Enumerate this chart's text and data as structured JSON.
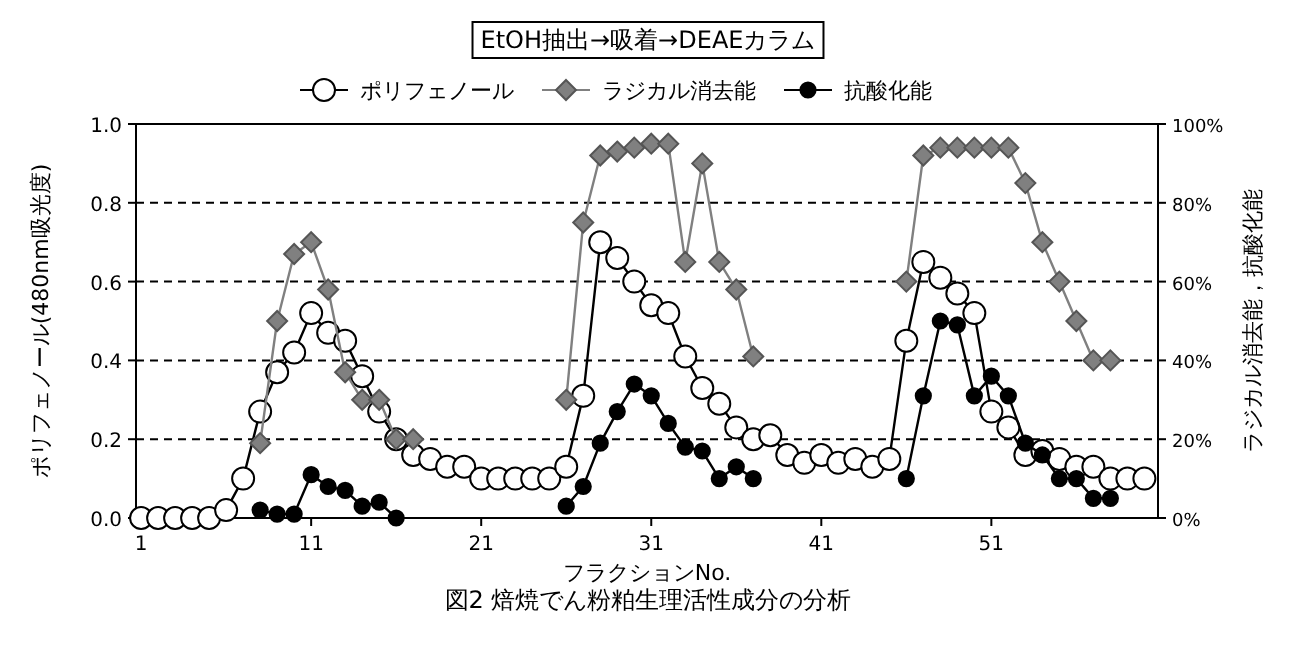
{
  "chart_data": {
    "type": "line",
    "title": "EtOH抽出→吸着→DEAEカラム",
    "xlabel": "フラクションNo.",
    "ylabel": "ポリフェノール(480nm吸光度)",
    "y2label": "ラジカル消去能，抗酸化能",
    "x": [
      1,
      2,
      3,
      4,
      5,
      6,
      7,
      8,
      9,
      10,
      11,
      12,
      13,
      14,
      15,
      16,
      17,
      18,
      19,
      20,
      21,
      22,
      23,
      24,
      25,
      26,
      27,
      28,
      29,
      30,
      31,
      32,
      33,
      34,
      35,
      36,
      37,
      38,
      39,
      40,
      41,
      42,
      43,
      44,
      45,
      46,
      47,
      48,
      49,
      50,
      51,
      52,
      53,
      54,
      55,
      56,
      57,
      58,
      59,
      60
    ],
    "series": [
      {
        "name": "ポリフェノール",
        "color": "#ffffff",
        "marker": "circle",
        "values": [
          0,
          0,
          0,
          0,
          0,
          0.02,
          0.1,
          0.27,
          0.37,
          0.42,
          0.52,
          0.47,
          0.45,
          0.36,
          0.27,
          0.2,
          0.16,
          0.15,
          0.13,
          0.13,
          0.1,
          0.1,
          0.1,
          0.1,
          0.1,
          0.13,
          0.31,
          0.7,
          0.66,
          0.6,
          0.54,
          0.52,
          0.41,
          0.33,
          0.29,
          0.23,
          0.2,
          0.21,
          0.16,
          0.14,
          0.16,
          0.14,
          0.15,
          0.13,
          0.15,
          0.45,
          0.65,
          0.61,
          0.57,
          0.52,
          0.27,
          0.23,
          0.16,
          0.17,
          0.15,
          0.13,
          0.13,
          0.1,
          0.1,
          0.1
        ]
      },
      {
        "name": "ラジカル消去能",
        "color": "#808080",
        "marker": "diamond",
        "axis": "y2",
        "values": [
          null,
          null,
          null,
          null,
          null,
          null,
          null,
          19,
          50,
          67,
          70,
          58,
          37,
          30,
          30,
          20,
          20,
          null,
          null,
          null,
          null,
          null,
          null,
          null,
          null,
          30,
          75,
          92,
          93,
          94,
          95,
          95,
          65,
          90,
          65,
          58,
          41,
          null,
          null,
          null,
          null,
          null,
          null,
          null,
          null,
          60,
          92,
          94,
          94,
          94,
          94,
          94,
          85,
          70,
          60,
          50,
          40,
          40,
          null,
          null
        ]
      },
      {
        "name": "抗酸化能",
        "color": "#000000",
        "marker": "circle",
        "axis": "y2",
        "values": [
          null,
          null,
          null,
          null,
          null,
          null,
          null,
          2,
          1,
          1,
          11,
          8,
          7,
          3,
          4,
          0,
          null,
          null,
          null,
          null,
          null,
          null,
          null,
          null,
          null,
          3,
          8,
          19,
          27,
          34,
          31,
          24,
          18,
          17,
          10,
          13,
          10,
          null,
          null,
          null,
          null,
          null,
          null,
          null,
          null,
          10,
          31,
          50,
          49,
          31,
          36,
          31,
          19,
          16,
          10,
          10,
          5,
          5,
          null,
          null
        ]
      }
    ],
    "xlim": [
      0.7,
      60.8
    ],
    "xticks": [
      1,
      11,
      21,
      31,
      41,
      51
    ],
    "ylim": [
      0,
      1
    ],
    "yticks": [
      {
        "value": 0,
        "label": "0.0"
      },
      0.2,
      0.4,
      0.6,
      0.8,
      {
        "value": 1,
        "label": "1.0"
      }
    ],
    "y2lim": [
      0,
      100
    ],
    "y2ticks": [
      {
        "value": 0,
        "label": "0%"
      },
      {
        "value": 20,
        "label": "20%"
      },
      {
        "value": 40,
        "label": "40%"
      },
      {
        "value": 60,
        "label": "60%"
      },
      {
        "value": 80,
        "label": "80%"
      },
      {
        "value": 100,
        "label": "100%"
      }
    ],
    "grid": "y",
    "legend": "top",
    "annotations": [
      "図2 焙焼でん粉粕生理活性成分の分析"
    ]
  }
}
